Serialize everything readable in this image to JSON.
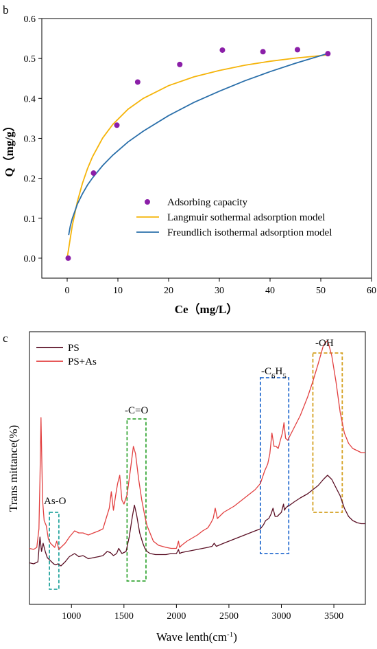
{
  "chart_data": [
    {
      "panel_label": "b",
      "type": "scatter",
      "xlabel": "Ce（mg/L）",
      "ylabel": "Q（mg/g）",
      "xlim": [
        -5,
        60
      ],
      "ylim": [
        -0.05,
        0.6
      ],
      "x_ticks": [
        0,
        10,
        20,
        30,
        40,
        50,
        60
      ],
      "y_ticks": [
        0.0,
        0.1,
        0.2,
        0.3,
        0.4,
        0.5,
        0.6
      ],
      "y_tick_labels": [
        "0.0",
        "0.1",
        "0.2",
        "0.3",
        "0.4",
        "0.5",
        "0.6"
      ],
      "grid": false,
      "legend_position": "bottom-right",
      "series": [
        {
          "name": "Adsorbing capacity",
          "kind": "points",
          "color": "#8b1fa8",
          "x": [
            0.2,
            5.2,
            9.8,
            13.9,
            22.2,
            30.6,
            38.6,
            45.4,
            51.4
          ],
          "y": [
            0.0,
            0.213,
            0.333,
            0.441,
            0.485,
            0.521,
            0.517,
            0.522,
            0.512
          ]
        },
        {
          "name": "Langmuir sothermal adsorption model",
          "kind": "line",
          "color": "#f5b40a",
          "x": [
            0,
            1,
            2,
            3,
            4,
            5,
            7,
            9,
            12,
            15,
            20,
            25,
            30,
            35,
            40,
            45,
            51.5
          ],
          "y": [
            0.0,
            0.081,
            0.141,
            0.187,
            0.224,
            0.254,
            0.301,
            0.335,
            0.373,
            0.4,
            0.432,
            0.454,
            0.47,
            0.483,
            0.493,
            0.501,
            0.509
          ]
        },
        {
          "name": "Freundlich isothermal adsorption model",
          "kind": "line",
          "color": "#2a6faa",
          "x": [
            0.3,
            0.6,
            1,
            2,
            3,
            4,
            5,
            7,
            9,
            12,
            15,
            20,
            25,
            30,
            35,
            40,
            45,
            51.5
          ],
          "y": [
            0.058,
            0.079,
            0.099,
            0.135,
            0.161,
            0.183,
            0.201,
            0.232,
            0.258,
            0.291,
            0.318,
            0.357,
            0.39,
            0.418,
            0.444,
            0.467,
            0.488,
            0.513
          ]
        }
      ]
    },
    {
      "panel_label": "c",
      "type": "line",
      "xlabel": "Wave lenth(cm⁻¹)",
      "xlabel_main": "Wave lenth(cm",
      "xlabel_sup": "-1",
      "xlabel_close": ")",
      "ylabel": "Trans mittance(%)",
      "xlim": [
        600,
        3800
      ],
      "x_ticks": [
        1000,
        1500,
        2000,
        2500,
        3000,
        3500
      ],
      "y_ticks_shown": false,
      "grid": false,
      "legend_position": "top-left",
      "series": [
        {
          "name": "PS",
          "color": "#5a0f24",
          "x": [
            600,
            640,
            680,
            700,
            715,
            730,
            750,
            770,
            790,
            810,
            830,
            850,
            870,
            900,
            940,
            980,
            1030,
            1070,
            1110,
            1160,
            1210,
            1260,
            1300,
            1340,
            1370,
            1400,
            1430,
            1450,
            1480,
            1500,
            1520,
            1550,
            1580,
            1600,
            1620,
            1650,
            1680,
            1700,
            1720,
            1750,
            1800,
            1850,
            1900,
            1950,
            2000,
            2020,
            2030,
            2050,
            2100,
            2150,
            2200,
            2250,
            2300,
            2340,
            2360,
            2380,
            2450,
            2550,
            2650,
            2750,
            2800,
            2830,
            2850,
            2880,
            2900,
            2920,
            2940,
            2960,
            2980,
            3000,
            3020,
            3030,
            3040,
            3060,
            3080,
            3120,
            3180,
            3250,
            3300,
            3350,
            3400,
            3440,
            3480,
            3520,
            3560,
            3600,
            3640,
            3680,
            3720,
            3760,
            3800
          ],
          "y": [
            19,
            18,
            20,
            44,
            30,
            38,
            30,
            24,
            22,
            20,
            18,
            17,
            18,
            16,
            20,
            25,
            28,
            25,
            26,
            23,
            24,
            25,
            26,
            30,
            29,
            26,
            28,
            33,
            28,
            29,
            30,
            44,
            64,
            75,
            66,
            48,
            38,
            33,
            30,
            28,
            27,
            27,
            27,
            28,
            28,
            32,
            28,
            29,
            30,
            31,
            32,
            33,
            34,
            35,
            38,
            35,
            38,
            42,
            46,
            50,
            52,
            56,
            60,
            62,
            66,
            72,
            64,
            64,
            66,
            68,
            76,
            70,
            72,
            74,
            75,
            78,
            82,
            86,
            90,
            94,
            100,
            104,
            100,
            92,
            84,
            72,
            64,
            60,
            58,
            57,
            57
          ]
        },
        {
          "name": "PS+As",
          "color": "#e24040",
          "x": [
            600,
            640,
            670,
            690,
            700,
            710,
            725,
            740,
            760,
            780,
            800,
            820,
            840,
            860,
            880,
            900,
            940,
            980,
            1030,
            1070,
            1110,
            1160,
            1210,
            1260,
            1300,
            1330,
            1360,
            1380,
            1400,
            1420,
            1440,
            1460,
            1480,
            1500,
            1530,
            1560,
            1590,
            1610,
            1640,
            1670,
            1700,
            1720,
            1740,
            1780,
            1830,
            1900,
            1950,
            2000,
            2020,
            2030,
            2050,
            2100,
            2150,
            2200,
            2250,
            2300,
            2330,
            2350,
            2370,
            2390,
            2450,
            2550,
            2650,
            2750,
            2800,
            2840,
            2870,
            2890,
            2910,
            2930,
            2950,
            2970,
            2990,
            3010,
            3025,
            3040,
            3060,
            3080,
            3120,
            3180,
            3250,
            3300,
            3350,
            3400,
            3440,
            3480,
            3520,
            3560,
            3600,
            3640,
            3680,
            3720,
            3760,
            3800
          ],
          "y": [
            33,
            32,
            34,
            52,
            100,
            160,
            80,
            60,
            55,
            42,
            38,
            36,
            34,
            40,
            32,
            34,
            38,
            44,
            50,
            48,
            48,
            46,
            48,
            50,
            52,
            62,
            72,
            88,
            70,
            84,
            96,
            104,
            80,
            76,
            85,
            108,
            132,
            125,
            100,
            80,
            64,
            55,
            50,
            40,
            36,
            34,
            33,
            33,
            40,
            34,
            36,
            40,
            43,
            46,
            50,
            53,
            58,
            62,
            72,
            62,
            68,
            74,
            82,
            90,
            96,
            108,
            115,
            125,
            145,
            132,
            132,
            130,
            138,
            145,
            155,
            140,
            138,
            142,
            150,
            162,
            180,
            195,
            212,
            230,
            235,
            220,
            195,
            165,
            145,
            135,
            130,
            128,
            126,
            126
          ]
        }
      ],
      "annotations": [
        {
          "label": "As-O",
          "color": "#2aa6a0",
          "x_range": [
            790,
            880
          ]
        },
        {
          "label": "-C=O",
          "color": "#3aa83a",
          "x_range": [
            1530,
            1710
          ]
        },
        {
          "label_main": "-C",
          "label_sub": "6",
          "label_tail": "H",
          "label_sub2": "5",
          "color": "#2a6fd0",
          "x_range": [
            2800,
            3070
          ]
        },
        {
          "label": "-OH",
          "color": "#d4a020",
          "x_range": [
            3300,
            3580
          ]
        }
      ]
    }
  ]
}
